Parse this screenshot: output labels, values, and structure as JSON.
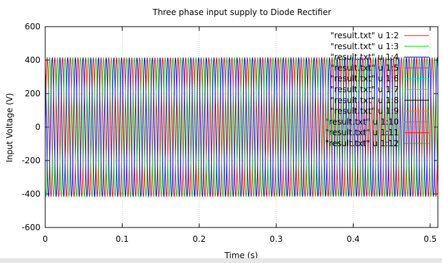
{
  "chart_data": {
    "type": "line",
    "title": "Three phase input supply to Diode Rectifier",
    "xlabel": "Time (s)",
    "ylabel": "Input Voltage (V)",
    "xlim": [
      0,
      0.51
    ],
    "ylim": [
      -600,
      600
    ],
    "x_ticks": [
      0,
      0.1,
      0.2,
      0.3,
      0.4,
      0.5
    ],
    "y_ticks": [
      -600,
      -400,
      -200,
      0,
      200,
      400,
      600
    ],
    "grid": true,
    "legend_position": "top-right",
    "frequency_hz": 100,
    "series": [
      {
        "name": "\"result.txt\" u 1:2",
        "color": "#ff0000",
        "amplitude": 414,
        "phase_deg": 0
      },
      {
        "name": "\"result.txt\" u 1:3",
        "color": "#00cc00",
        "amplitude": 414,
        "phase_deg": -120
      },
      {
        "name": "\"result.txt\" u 1:4",
        "color": "#0000ff",
        "amplitude": 414,
        "phase_deg": 120
      },
      {
        "name": "\"result.txt\" u 1:5",
        "color": "#ff00ff",
        "amplitude": 0,
        "phase_deg": 0
      },
      {
        "name": "\"result.txt\" u 1:6",
        "color": "#00e5e5",
        "amplitude": 0,
        "phase_deg": 0
      },
      {
        "name": "\"result.txt\" u 1:7",
        "color": "#c8a000",
        "amplitude": 0,
        "phase_deg": 0
      },
      {
        "name": "\"result.txt\" u 1:8",
        "color": "#000000",
        "amplitude": 0,
        "phase_deg": 0
      },
      {
        "name": "\"result.txt\" u 1:9",
        "color": "#ff8000",
        "amplitude": 0,
        "phase_deg": 0
      },
      {
        "name": "\"result.txt\" u 1:10",
        "color": "#808080",
        "amplitude": 0,
        "phase_deg": 0
      },
      {
        "name": "\"result.txt\" u 1:11",
        "color": "#ff0000",
        "amplitude": 0,
        "phase_deg": 0
      },
      {
        "name": "\"result.txt\" u 1:12",
        "color": "#00cc00",
        "amplitude": 0,
        "phase_deg": 0
      }
    ]
  }
}
